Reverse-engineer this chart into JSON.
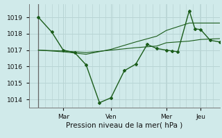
{
  "bg_color": "#d0eaea",
  "grid_color": "#b8d4d4",
  "line_color": "#1a5c1a",
  "xtick_labels": [
    "Mar",
    "Ven",
    "Mer",
    "Jeu"
  ],
  "xtick_positions": [
    0.18,
    0.43,
    0.72,
    0.9
  ],
  "xlabel_text": "Pression niveau de la mer( hPa )",
  "ylim": [
    1013.5,
    1019.8
  ],
  "yticks": [
    1014,
    1015,
    1016,
    1017,
    1018,
    1019
  ],
  "xlim": [
    0.0,
    1.0
  ],
  "vlines": [
    0.05,
    0.18,
    0.43,
    0.72,
    0.9
  ],
  "s1x": [
    0.05,
    0.12,
    0.18,
    0.24,
    0.3,
    0.37,
    0.43,
    0.5,
    0.56,
    0.62,
    0.67,
    0.72,
    0.75,
    0.78,
    0.84,
    0.87,
    0.9,
    0.95,
    1.0
  ],
  "s1y": [
    1019.0,
    1018.1,
    1017.0,
    1016.85,
    1016.1,
    1013.8,
    1014.1,
    1015.75,
    1016.15,
    1017.35,
    1017.1,
    1017.0,
    1016.95,
    1016.9,
    1019.4,
    1018.3,
    1018.25,
    1017.6,
    1017.5
  ],
  "s2x": [
    0.05,
    0.18,
    0.3,
    0.43,
    0.56,
    0.67,
    0.72,
    0.84,
    0.9,
    1.0
  ],
  "s2y": [
    1017.0,
    1016.95,
    1016.85,
    1017.0,
    1017.15,
    1017.25,
    1017.45,
    1017.55,
    1017.65,
    1017.7
  ],
  "s3x": [
    0.05,
    0.18,
    0.3,
    0.43,
    0.56,
    0.67,
    0.72,
    0.84,
    0.9,
    1.0
  ],
  "s3y": [
    1017.0,
    1016.9,
    1016.75,
    1017.05,
    1017.5,
    1017.85,
    1018.2,
    1018.65,
    1018.65,
    1018.65
  ],
  "tick_fontsize": 6.5,
  "xlabel_fontsize": 7.5
}
